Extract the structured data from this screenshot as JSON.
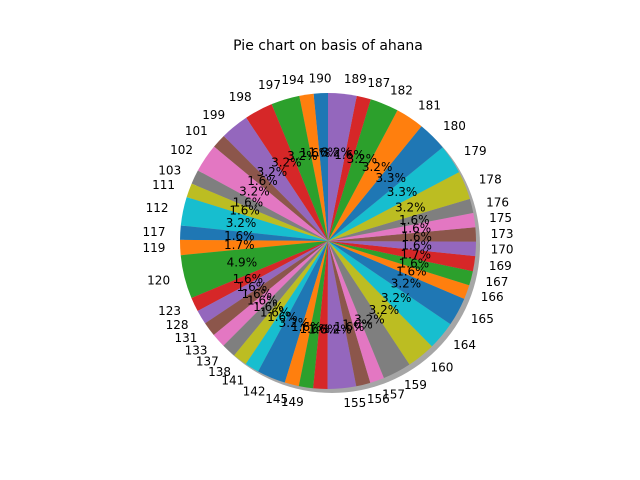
{
  "chart_data": {
    "type": "pie",
    "title": "Pie chart on basis of ahana",
    "shadow": true,
    "start_angle_deg": 90,
    "direction": "counterclockwise",
    "colors": [
      "#1f77b4",
      "#ff7f0e",
      "#2ca02c",
      "#d62728",
      "#9467bd",
      "#8c564b",
      "#e377c2",
      "#7f7f7f",
      "#bcbd22",
      "#17becf"
    ],
    "slices": [
      {
        "label": "190",
        "value": 1.6,
        "pct_text": "1.6%"
      },
      {
        "label": "194",
        "value": 1.6,
        "pct_text": "1.6%"
      },
      {
        "label": "197",
        "value": 3.2,
        "pct_text": "3.2%"
      },
      {
        "label": "198",
        "value": 3.2,
        "pct_text": "3.2%"
      },
      {
        "label": "199",
        "value": 3.2,
        "pct_text": "3.2%"
      },
      {
        "label": "101",
        "value": 1.6,
        "pct_text": "1.6%"
      },
      {
        "label": "102",
        "value": 3.2,
        "pct_text": "3.2%"
      },
      {
        "label": "103",
        "value": 1.6,
        "pct_text": "1.6%"
      },
      {
        "label": "111",
        "value": 1.6,
        "pct_text": "1.6%"
      },
      {
        "label": "112",
        "value": 3.2,
        "pct_text": "3.2%"
      },
      {
        "label": "117",
        "value": 1.6,
        "pct_text": "1.6%"
      },
      {
        "label": "119",
        "value": 1.7,
        "pct_text": "1.7%"
      },
      {
        "label": "120",
        "value": 4.9,
        "pct_text": "4.9%"
      },
      {
        "label": "123",
        "value": 1.6,
        "pct_text": "1.6%"
      },
      {
        "label": "128",
        "value": 1.6,
        "pct_text": "1.6%"
      },
      {
        "label": "131",
        "value": 1.6,
        "pct_text": "1.6%"
      },
      {
        "label": "133",
        "value": 1.6,
        "pct_text": "1.6%"
      },
      {
        "label": "137",
        "value": 1.6,
        "pct_text": "1.6%"
      },
      {
        "label": "138",
        "value": 1.6,
        "pct_text": "1.6%"
      },
      {
        "label": "141",
        "value": 1.6,
        "pct_text": "1.6%"
      },
      {
        "label": "142",
        "value": 3.2,
        "pct_text": "3.2%"
      },
      {
        "label": "145",
        "value": 1.6,
        "pct_text": "1.6%"
      },
      {
        "label": "149",
        "value": 1.6,
        "pct_text": "1.6%"
      },
      {
        "label": "",
        "value": 1.6,
        "pct_text": "1.6%"
      },
      {
        "label": "155",
        "value": 3.2,
        "pct_text": "3.2%"
      },
      {
        "label": "156",
        "value": 1.6,
        "pct_text": "1.6%"
      },
      {
        "label": "157",
        "value": 1.6,
        "pct_text": "1.6%"
      },
      {
        "label": "159",
        "value": 3.2,
        "pct_text": "3.2%"
      },
      {
        "label": "160",
        "value": 3.2,
        "pct_text": "3.2%"
      },
      {
        "label": "164",
        "value": 3.2,
        "pct_text": "3.2%"
      },
      {
        "label": "165",
        "value": 3.2,
        "pct_text": "3.2%"
      },
      {
        "label": "166",
        "value": 1.6,
        "pct_text": "1.6%"
      },
      {
        "label": "167",
        "value": 1.6,
        "pct_text": "1.6%"
      },
      {
        "label": "169",
        "value": 1.7,
        "pct_text": "1.7%"
      },
      {
        "label": "170",
        "value": 1.6,
        "pct_text": "1.6%"
      },
      {
        "label": "173",
        "value": 1.6,
        "pct_text": "1.6%"
      },
      {
        "label": "175",
        "value": 1.6,
        "pct_text": "1.6%"
      },
      {
        "label": "176",
        "value": 1.6,
        "pct_text": "1.6%"
      },
      {
        "label": "178",
        "value": 3.2,
        "pct_text": "3.2%"
      },
      {
        "label": "179",
        "value": 3.3,
        "pct_text": "3.3%"
      },
      {
        "label": "180",
        "value": 3.3,
        "pct_text": "3.3%"
      },
      {
        "label": "181",
        "value": 3.2,
        "pct_text": "3.2%"
      },
      {
        "label": "182",
        "value": 3.2,
        "pct_text": "3.2%"
      },
      {
        "label": "187",
        "value": 1.6,
        "pct_text": "1.6%"
      },
      {
        "label": "189",
        "value": 3.2,
        "pct_text": "3.2%"
      }
    ]
  }
}
